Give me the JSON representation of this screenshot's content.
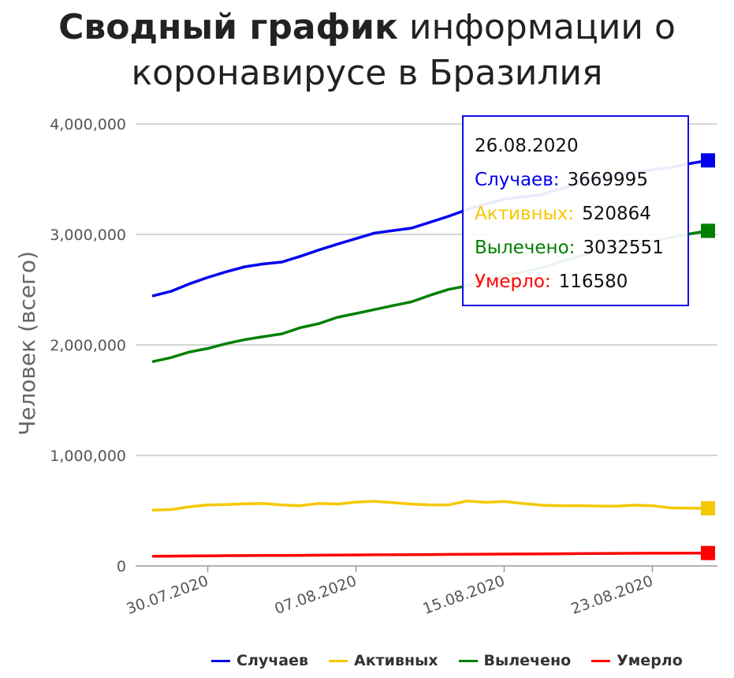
{
  "header": {
    "title_bold": "Сводный график",
    "title_rest_line1": "информации о",
    "title_line2": "коронавирусе в Бразилия"
  },
  "tooltip": {
    "date": "26.08.2020",
    "rows": [
      {
        "label": "Случаев:",
        "value": "3669995",
        "color": "#0000ee"
      },
      {
        "label": "Активных:",
        "value": "520864",
        "color": "#f5c800"
      },
      {
        "label": "Вылечено:",
        "value": "3032551",
        "color": "#008000"
      },
      {
        "label": "Умерло:",
        "value": "116580",
        "color": "#ff0000"
      }
    ]
  },
  "chart_data": {
    "type": "line",
    "ylabel": "Человек (всего)",
    "xlabel": "",
    "ylim": [
      0,
      4000000
    ],
    "yticks": [
      0,
      1000000,
      2000000,
      3000000,
      4000000
    ],
    "ytick_labels": [
      "0",
      "1,000,000",
      "2,000,000",
      "3,000,000",
      "4,000,000"
    ],
    "x": [
      "27.07.2020",
      "28.07.2020",
      "29.07.2020",
      "30.07.2020",
      "31.07.2020",
      "01.08.2020",
      "02.08.2020",
      "03.08.2020",
      "04.08.2020",
      "05.08.2020",
      "06.08.2020",
      "07.08.2020",
      "08.08.2020",
      "09.08.2020",
      "10.08.2020",
      "11.08.2020",
      "12.08.2020",
      "13.08.2020",
      "14.08.2020",
      "15.08.2020",
      "16.08.2020",
      "17.08.2020",
      "18.08.2020",
      "19.08.2020",
      "20.08.2020",
      "21.08.2020",
      "22.08.2020",
      "23.08.2020",
      "24.08.2020",
      "25.08.2020",
      "26.08.2020"
    ],
    "xtick_labels": [
      "30.07.2020",
      "07.08.2020",
      "15.08.2020",
      "23.08.2020"
    ],
    "legend_position": "bottom",
    "grid": true,
    "series": [
      {
        "name": "Случаев",
        "color": "#0000ee",
        "values": [
          2442000,
          2484000,
          2552000,
          2611000,
          2662000,
          2707000,
          2733000,
          2750000,
          2802000,
          2859000,
          2912000,
          2962000,
          3012000,
          3035000,
          3057000,
          3110000,
          3164000,
          3225000,
          3275000,
          3318000,
          3340000,
          3360000,
          3410000,
          3460000,
          3505000,
          3536000,
          3560000,
          3584000,
          3605000,
          3640000,
          3669995
        ]
      },
      {
        "name": "Активных",
        "color": "#f5c800",
        "values": [
          505000,
          510000,
          535000,
          552000,
          556000,
          562000,
          565000,
          552000,
          545000,
          566000,
          560000,
          578000,
          585000,
          572000,
          560000,
          553000,
          552000,
          588000,
          576000,
          583000,
          565000,
          550000,
          545000,
          546000,
          542000,
          540000,
          550000,
          545000,
          525000,
          522000,
          520864
        ]
      },
      {
        "name": "Вылечено",
        "color": "#008000",
        "values": [
          1848000,
          1884000,
          1936000,
          1968000,
          2012000,
          2048000,
          2075000,
          2100000,
          2156000,
          2193000,
          2250000,
          2284000,
          2320000,
          2356000,
          2390000,
          2449000,
          2502000,
          2534000,
          2594000,
          2622000,
          2662000,
          2698000,
          2750000,
          2800000,
          2850000,
          2885000,
          2906000,
          2938000,
          2972000,
          3004000,
          3032551
        ]
      },
      {
        "name": "Умерло",
        "color": "#ff0000",
        "values": [
          87600,
          88600,
          90100,
          91300,
          92500,
          93600,
          94100,
          94700,
          95800,
          97400,
          98600,
          99600,
          100500,
          101000,
          101800,
          103000,
          104200,
          105500,
          106500,
          107300,
          107900,
          108500,
          109900,
          111100,
          112400,
          113400,
          114000,
          114800,
          115300,
          116000,
          116580
        ]
      }
    ]
  }
}
